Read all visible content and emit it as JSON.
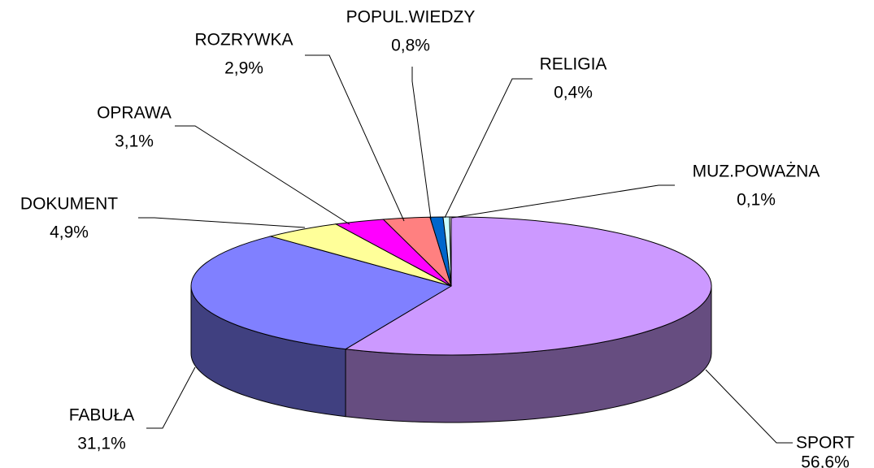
{
  "chart_data": {
    "type": "pie",
    "categories": [
      "SPORT",
      "FABUŁA",
      "DOKUMENT",
      "OPRAWA",
      "ROZRYWKA",
      "POPUL.WIEDZY",
      "RELIGIA",
      "MUZ.POWAŻNA"
    ],
    "values": [
      56.6,
      31.1,
      4.9,
      3.1,
      2.9,
      0.8,
      0.4,
      0.1
    ],
    "value_labels": [
      "56,6%",
      "31,1%",
      "4,9%",
      "3,1%",
      "2,9%",
      "0,8%",
      "0,4%",
      "0,1%"
    ],
    "colors": [
      "#cc99ff",
      "#8080ff",
      "#ffff99",
      "#ff00ff",
      "#ff8080",
      "#0066cc",
      "#ccffff",
      "#ffffff"
    ]
  }
}
